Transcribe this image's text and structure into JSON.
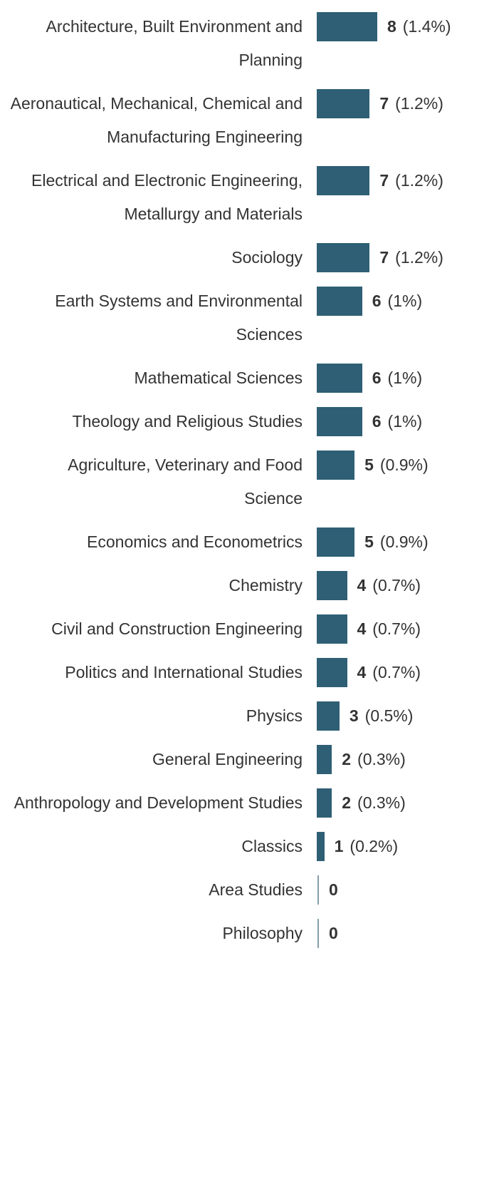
{
  "chart_data": {
    "type": "bar",
    "orientation": "horizontal",
    "color": "#2e5f74",
    "categories": [
      "Architecture, Built Environment and Planning",
      "Aeronautical, Mechanical, Chemical and Manufacturing Engineering",
      "Electrical and Electronic Engineering, Metallurgy and Materials",
      "Sociology",
      "Earth Systems and Environmental Sciences",
      "Mathematical Sciences",
      "Theology and Religious Studies",
      "Agriculture, Veterinary and Food Science",
      "Economics and Econometrics",
      "Chemistry",
      "Civil and Construction Engineering",
      "Politics and International Studies",
      "Physics",
      "General Engineering",
      "Anthropology and Development Studies",
      "Classics",
      "Area Studies",
      "Philosophy"
    ],
    "values": [
      8,
      7,
      7,
      7,
      6,
      6,
      6,
      5,
      5,
      4,
      4,
      4,
      3,
      2,
      2,
      1,
      0,
      0
    ],
    "percent_labels": [
      "(1.4%)",
      "(1.2%)",
      "(1.2%)",
      "(1.2%)",
      "(1%)",
      "(1%)",
      "(1%)",
      "(0.9%)",
      "(0.9%)",
      "(0.7%)",
      "(0.7%)",
      "(0.7%)",
      "(0.5%)",
      "(0.3%)",
      "(0.3%)",
      "(0.2%)",
      null,
      null
    ]
  }
}
